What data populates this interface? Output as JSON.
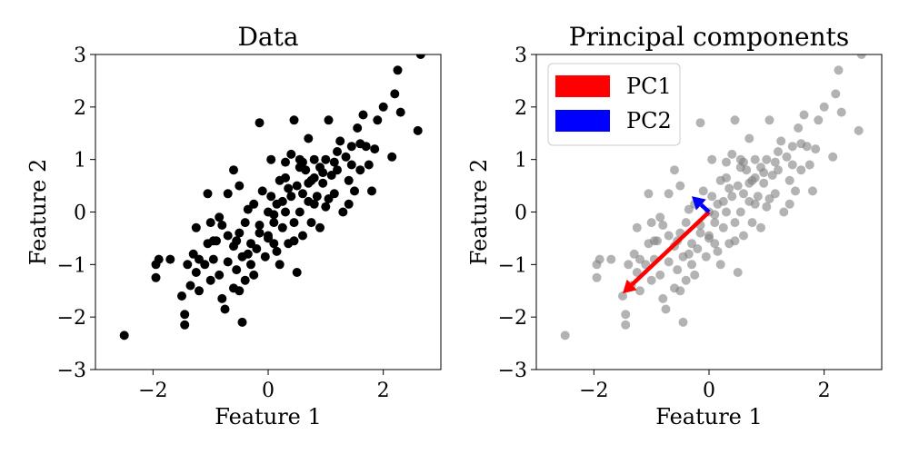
{
  "chart_data": [
    {
      "type": "scatter",
      "title": "Data",
      "xlabel": "Feature 1",
      "ylabel": "Feature 2",
      "xlim": [
        -3,
        3
      ],
      "ylim": [
        -3,
        3
      ],
      "xticks": [
        -2,
        0,
        2
      ],
      "yticks": [
        -3,
        -2,
        -1,
        0,
        1,
        2,
        3
      ],
      "grid": false,
      "marker_color": "#000000",
      "series": [
        {
          "points": [
            [
              -2.5,
              -2.35
            ],
            [
              -1.95,
              -1.0
            ],
            [
              -1.9,
              -0.9
            ],
            [
              -1.95,
              -1.25
            ],
            [
              -1.7,
              -0.9
            ],
            [
              -1.5,
              -1.6
            ],
            [
              -1.45,
              -2.15
            ],
            [
              -1.45,
              -1.95
            ],
            [
              -1.4,
              -1.0
            ],
            [
              -1.35,
              -1.4
            ],
            [
              -1.3,
              -0.8
            ],
            [
              -1.25,
              -1.15
            ],
            [
              -1.2,
              -0.9
            ],
            [
              -1.1,
              -1.0
            ],
            [
              -1.05,
              -0.6
            ],
            [
              -1.0,
              -1.3
            ],
            [
              -1.0,
              -0.2
            ],
            [
              -1.05,
              0.35
            ],
            [
              -0.95,
              -0.9
            ],
            [
              -0.9,
              -0.55
            ],
            [
              -0.85,
              -1.2
            ],
            [
              -0.8,
              -1.65
            ],
            [
              -0.8,
              -0.25
            ],
            [
              -0.75,
              -1.85
            ],
            [
              -0.7,
              -0.95
            ],
            [
              -0.7,
              -0.45
            ],
            [
              -0.6,
              -1.45
            ],
            [
              -0.6,
              -0.65
            ],
            [
              -0.55,
              -1.1
            ],
            [
              -0.5,
              -0.4
            ],
            [
              -0.5,
              0.5
            ],
            [
              -0.45,
              -2.1
            ],
            [
              -0.45,
              -0.85
            ],
            [
              -0.4,
              -1.3
            ],
            [
              -0.4,
              -0.2
            ],
            [
              -0.35,
              0.05
            ],
            [
              -0.3,
              -1.0
            ],
            [
              -0.3,
              -0.6
            ],
            [
              -0.25,
              -1.2
            ],
            [
              -0.2,
              -0.7
            ],
            [
              -0.15,
              -0.4
            ],
            [
              -0.1,
              0.4
            ],
            [
              -0.05,
              -0.85
            ],
            [
              0.0,
              -0.5
            ],
            [
              0.0,
              0.0
            ],
            [
              0.05,
              0.3
            ],
            [
              0.05,
              1.0
            ],
            [
              0.1,
              -0.6
            ],
            [
              0.1,
              -0.2
            ],
            [
              0.15,
              0.15
            ],
            [
              0.2,
              -1.0
            ],
            [
              0.2,
              0.6
            ],
            [
              0.25,
              -0.3
            ],
            [
              0.3,
              0.0
            ],
            [
              0.3,
              0.95
            ],
            [
              0.35,
              -0.6
            ],
            [
              0.4,
              0.3
            ],
            [
              0.4,
              1.1
            ],
            [
              0.45,
              -0.2
            ],
            [
              0.5,
              -1.15
            ],
            [
              0.5,
              0.5
            ],
            [
              0.55,
              0.0
            ],
            [
              0.55,
              1.0
            ],
            [
              0.6,
              -0.45
            ],
            [
              0.6,
              0.35
            ],
            [
              0.65,
              0.8
            ],
            [
              0.7,
              0.2
            ],
            [
              0.7,
              1.4
            ],
            [
              0.75,
              -0.2
            ],
            [
              0.75,
              0.6
            ],
            [
              0.8,
              1.0
            ],
            [
              0.85,
              0.3
            ],
            [
              0.9,
              0.85
            ],
            [
              0.9,
              -0.3
            ],
            [
              0.95,
              0.55
            ],
            [
              1.0,
              1.0
            ],
            [
              1.0,
              0.1
            ],
            [
              1.05,
              1.75
            ],
            [
              1.1,
              0.7
            ],
            [
              1.15,
              0.35
            ],
            [
              1.2,
              0.8
            ],
            [
              1.25,
              1.35
            ],
            [
              1.3,
              0.0
            ],
            [
              1.35,
              1.05
            ],
            [
              1.4,
              0.6
            ],
            [
              1.45,
              0.9
            ],
            [
              1.5,
              0.4
            ],
            [
              1.55,
              1.6
            ],
            [
              1.6,
              0.8
            ],
            [
              1.65,
              1.85
            ],
            [
              1.7,
              1.25
            ],
            [
              1.75,
              0.9
            ],
            [
              1.8,
              0.4
            ],
            [
              1.85,
              1.2
            ],
            [
              1.9,
              1.75
            ],
            [
              2.0,
              2.0
            ],
            [
              2.15,
              1.05
            ],
            [
              2.2,
              2.25
            ],
            [
              2.25,
              2.7
            ],
            [
              2.3,
              1.9
            ],
            [
              2.6,
              1.55
            ],
            [
              2.65,
              3.0
            ],
            [
              -0.15,
              1.7
            ],
            [
              0.45,
              1.75
            ],
            [
              -0.6,
              0.8
            ],
            [
              -1.25,
              -0.3
            ],
            [
              -0.85,
              -0.1
            ],
            [
              -0.7,
              0.35
            ],
            [
              -0.55,
              -0.55
            ],
            [
              -0.35,
              -0.8
            ],
            [
              -0.15,
              -0.25
            ],
            [
              0.0,
              -0.45
            ],
            [
              0.15,
              -0.75
            ],
            [
              0.25,
              0.2
            ],
            [
              0.35,
              0.45
            ],
            [
              0.45,
              -0.55
            ],
            [
              0.6,
              0.95
            ],
            [
              0.7,
              0.55
            ],
            [
              0.8,
              0.15
            ],
            [
              0.95,
              0.75
            ],
            [
              1.05,
              0.25
            ],
            [
              1.2,
              1.15
            ],
            [
              1.4,
              0.15
            ],
            [
              1.6,
              1.3
            ],
            [
              -1.2,
              -1.5
            ],
            [
              -0.95,
              -0.55
            ],
            [
              -0.5,
              -1.5
            ],
            [
              -0.25,
              0.15
            ],
            [
              0.1,
              -0.05
            ],
            [
              0.3,
              0.65
            ],
            [
              0.55,
              0.85
            ],
            [
              0.8,
              0.65
            ],
            [
              1.15,
              0.95
            ],
            [
              1.45,
              1.25
            ]
          ]
        }
      ]
    },
    {
      "type": "scatter",
      "title": "Principal components",
      "xlabel": "Feature 1",
      "ylabel": "Feature 2",
      "xlim": [
        -3,
        3
      ],
      "ylim": [
        -3,
        3
      ],
      "xticks": [
        -2,
        0,
        2
      ],
      "yticks": [
        -3,
        -2,
        -1,
        0,
        1,
        2,
        3
      ],
      "grid": false,
      "marker_color": "#808080",
      "marker_alpha": 0.6,
      "legend_position": "top-left",
      "legend": [
        {
          "name": "PC1",
          "color": "#ff0000"
        },
        {
          "name": "PC2",
          "color": "#0000ff"
        }
      ],
      "vectors": [
        {
          "name": "PC1",
          "color": "#ff0000",
          "from": [
            0,
            0
          ],
          "to": [
            -1.5,
            -1.55
          ]
        },
        {
          "name": "PC2",
          "color": "#0000ff",
          "from": [
            0,
            0
          ],
          "to": [
            -0.3,
            0.3
          ]
        }
      ],
      "series": [
        {
          "points_same_as_left_panel": true
        }
      ]
    }
  ]
}
